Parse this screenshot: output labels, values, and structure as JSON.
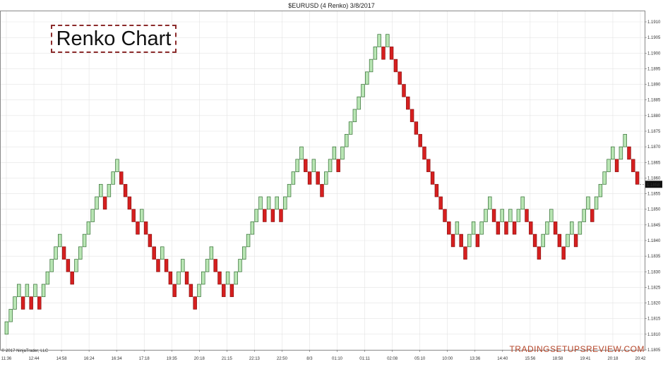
{
  "chart_data": {
    "type": "renko",
    "title": "$EURUSD (4 Renko)  3/8/2017",
    "box_size": 0.0004,
    "ylim": [
      1.1805,
      1.1912
    ],
    "y_ticks": [
      "1.1910",
      "1.1905",
      "1.1900",
      "1.1895",
      "1.1890",
      "1.1885",
      "1.1880",
      "1.1875",
      "1.1870",
      "1.1865",
      "1.1860",
      "1.1855",
      "1.1850",
      "1.1845",
      "1.1840",
      "1.1835",
      "1.1830",
      "1.1825",
      "1.1820",
      "1.1815",
      "1.1810",
      "1.1805"
    ],
    "x_ticks": [
      "11:36",
      "12:44",
      "14:58",
      "16:24",
      "16:34",
      "17:18",
      "19:35",
      "20:18",
      "21:15",
      "22:13",
      "22:50",
      "8/3",
      "01:10",
      "01:11",
      "02:08",
      "05:10",
      "10:00",
      "13:36",
      "14:40",
      "15:56",
      "18:58",
      "19:41",
      "20:18",
      "20:42"
    ],
    "last_price": "1.1858",
    "start_price": 1.181,
    "bricks": [
      {
        "dir": "up",
        "from": 1.181,
        "to": 1.1814
      },
      {
        "dir": "up",
        "from": 1.1814,
        "to": 1.1818
      },
      {
        "dir": "up",
        "from": 1.1818,
        "to": 1.1822
      },
      {
        "dir": "up",
        "from": 1.1822,
        "to": 1.1826
      },
      {
        "dir": "down",
        "from": 1.1822,
        "to": 1.1818
      },
      {
        "dir": "up",
        "from": 1.1822,
        "to": 1.1826
      },
      {
        "dir": "down",
        "from": 1.1822,
        "to": 1.1818
      },
      {
        "dir": "up",
        "from": 1.1822,
        "to": 1.1826
      },
      {
        "dir": "down",
        "from": 1.1822,
        "to": 1.1818
      },
      {
        "dir": "up",
        "from": 1.1822,
        "to": 1.1826
      },
      {
        "dir": "up",
        "from": 1.1826,
        "to": 1.183
      },
      {
        "dir": "up",
        "from": 1.183,
        "to": 1.1834
      },
      {
        "dir": "up",
        "from": 1.1834,
        "to": 1.1838
      },
      {
        "dir": "up",
        "from": 1.1838,
        "to": 1.1842
      },
      {
        "dir": "down",
        "from": 1.1838,
        "to": 1.1834
      },
      {
        "dir": "down",
        "from": 1.1834,
        "to": 1.183
      },
      {
        "dir": "down",
        "from": 1.183,
        "to": 1.1826
      },
      {
        "dir": "up",
        "from": 1.183,
        "to": 1.1834
      },
      {
        "dir": "up",
        "from": 1.1834,
        "to": 1.1838
      },
      {
        "dir": "up",
        "from": 1.1838,
        "to": 1.1842
      },
      {
        "dir": "up",
        "from": 1.1842,
        "to": 1.1846
      },
      {
        "dir": "up",
        "from": 1.1846,
        "to": 1.185
      },
      {
        "dir": "up",
        "from": 1.185,
        "to": 1.1854
      },
      {
        "dir": "up",
        "from": 1.1854,
        "to": 1.1858
      },
      {
        "dir": "down",
        "from": 1.1854,
        "to": 1.185
      },
      {
        "dir": "up",
        "from": 1.1854,
        "to": 1.1858
      },
      {
        "dir": "up",
        "from": 1.1858,
        "to": 1.1862
      },
      {
        "dir": "up",
        "from": 1.1862,
        "to": 1.1866
      },
      {
        "dir": "down",
        "from": 1.1862,
        "to": 1.1858
      },
      {
        "dir": "down",
        "from": 1.1858,
        "to": 1.1854
      },
      {
        "dir": "down",
        "from": 1.1854,
        "to": 1.185
      },
      {
        "dir": "down",
        "from": 1.185,
        "to": 1.1846
      },
      {
        "dir": "down",
        "from": 1.1846,
        "to": 1.1842
      },
      {
        "dir": "up",
        "from": 1.1846,
        "to": 1.185
      },
      {
        "dir": "down",
        "from": 1.1846,
        "to": 1.1842
      },
      {
        "dir": "down",
        "from": 1.1842,
        "to": 1.1838
      },
      {
        "dir": "down",
        "from": 1.1838,
        "to": 1.1834
      },
      {
        "dir": "down",
        "from": 1.1834,
        "to": 1.183
      },
      {
        "dir": "up",
        "from": 1.1834,
        "to": 1.1838
      },
      {
        "dir": "down",
        "from": 1.1834,
        "to": 1.183
      },
      {
        "dir": "down",
        "from": 1.183,
        "to": 1.1826
      },
      {
        "dir": "down",
        "from": 1.1826,
        "to": 1.1822
      },
      {
        "dir": "up",
        "from": 1.1826,
        "to": 1.183
      },
      {
        "dir": "up",
        "from": 1.183,
        "to": 1.1834
      },
      {
        "dir": "down",
        "from": 1.183,
        "to": 1.1826
      },
      {
        "dir": "down",
        "from": 1.1826,
        "to": 1.1822
      },
      {
        "dir": "down",
        "from": 1.1822,
        "to": 1.1818
      },
      {
        "dir": "up",
        "from": 1.1822,
        "to": 1.1826
      },
      {
        "dir": "up",
        "from": 1.1826,
        "to": 1.183
      },
      {
        "dir": "up",
        "from": 1.183,
        "to": 1.1834
      },
      {
        "dir": "up",
        "from": 1.1834,
        "to": 1.1838
      },
      {
        "dir": "down",
        "from": 1.1834,
        "to": 1.183
      },
      {
        "dir": "down",
        "from": 1.183,
        "to": 1.1826
      },
      {
        "dir": "down",
        "from": 1.1826,
        "to": 1.1822
      },
      {
        "dir": "up",
        "from": 1.1826,
        "to": 1.183
      },
      {
        "dir": "down",
        "from": 1.1826,
        "to": 1.1822
      },
      {
        "dir": "up",
        "from": 1.1826,
        "to": 1.183
      },
      {
        "dir": "up",
        "from": 1.183,
        "to": 1.1834
      },
      {
        "dir": "up",
        "from": 1.1834,
        "to": 1.1838
      },
      {
        "dir": "up",
        "from": 1.1838,
        "to": 1.1842
      },
      {
        "dir": "up",
        "from": 1.1842,
        "to": 1.1846
      },
      {
        "dir": "up",
        "from": 1.1846,
        "to": 1.185
      },
      {
        "dir": "up",
        "from": 1.185,
        "to": 1.1854
      },
      {
        "dir": "down",
        "from": 1.185,
        "to": 1.1846
      },
      {
        "dir": "up",
        "from": 1.185,
        "to": 1.1854
      },
      {
        "dir": "down",
        "from": 1.185,
        "to": 1.1846
      },
      {
        "dir": "up",
        "from": 1.185,
        "to": 1.1854
      },
      {
        "dir": "down",
        "from": 1.185,
        "to": 1.1846
      },
      {
        "dir": "up",
        "from": 1.185,
        "to": 1.1854
      },
      {
        "dir": "up",
        "from": 1.1854,
        "to": 1.1858
      },
      {
        "dir": "up",
        "from": 1.1858,
        "to": 1.1862
      },
      {
        "dir": "up",
        "from": 1.1862,
        "to": 1.1866
      },
      {
        "dir": "up",
        "from": 1.1866,
        "to": 1.187
      },
      {
        "dir": "down",
        "from": 1.1866,
        "to": 1.1862
      },
      {
        "dir": "down",
        "from": 1.1862,
        "to": 1.1858
      },
      {
        "dir": "up",
        "from": 1.1862,
        "to": 1.1866
      },
      {
        "dir": "down",
        "from": 1.1862,
        "to": 1.1858
      },
      {
        "dir": "down",
        "from": 1.1858,
        "to": 1.1854
      },
      {
        "dir": "up",
        "from": 1.1858,
        "to": 1.1862
      },
      {
        "dir": "up",
        "from": 1.1862,
        "to": 1.1866
      },
      {
        "dir": "up",
        "from": 1.1866,
        "to": 1.187
      },
      {
        "dir": "down",
        "from": 1.1866,
        "to": 1.1862
      },
      {
        "dir": "up",
        "from": 1.1866,
        "to": 1.187
      },
      {
        "dir": "up",
        "from": 1.187,
        "to": 1.1874
      },
      {
        "dir": "up",
        "from": 1.1874,
        "to": 1.1878
      },
      {
        "dir": "up",
        "from": 1.1878,
        "to": 1.1882
      },
      {
        "dir": "up",
        "from": 1.1882,
        "to": 1.1886
      },
      {
        "dir": "up",
        "from": 1.1886,
        "to": 1.189
      },
      {
        "dir": "up",
        "from": 1.189,
        "to": 1.1894
      },
      {
        "dir": "up",
        "from": 1.1894,
        "to": 1.1898
      },
      {
        "dir": "up",
        "from": 1.1898,
        "to": 1.1902
      },
      {
        "dir": "up",
        "from": 1.1902,
        "to": 1.1906
      },
      {
        "dir": "down",
        "from": 1.1902,
        "to": 1.1898
      },
      {
        "dir": "up",
        "from": 1.1902,
        "to": 1.1906
      },
      {
        "dir": "down",
        "from": 1.1902,
        "to": 1.1898
      },
      {
        "dir": "down",
        "from": 1.1898,
        "to": 1.1894
      },
      {
        "dir": "down",
        "from": 1.1894,
        "to": 1.189
      },
      {
        "dir": "down",
        "from": 1.189,
        "to": 1.1886
      },
      {
        "dir": "down",
        "from": 1.1886,
        "to": 1.1882
      },
      {
        "dir": "down",
        "from": 1.1882,
        "to": 1.1878
      },
      {
        "dir": "down",
        "from": 1.1878,
        "to": 1.1874
      },
      {
        "dir": "down",
        "from": 1.1874,
        "to": 1.187
      },
      {
        "dir": "down",
        "from": 1.187,
        "to": 1.1866
      },
      {
        "dir": "down",
        "from": 1.1866,
        "to": 1.1862
      },
      {
        "dir": "down",
        "from": 1.1862,
        "to": 1.1858
      },
      {
        "dir": "down",
        "from": 1.1858,
        "to": 1.1854
      },
      {
        "dir": "down",
        "from": 1.1854,
        "to": 1.185
      },
      {
        "dir": "down",
        "from": 1.185,
        "to": 1.1846
      },
      {
        "dir": "down",
        "from": 1.1846,
        "to": 1.1842
      },
      {
        "dir": "down",
        "from": 1.1842,
        "to": 1.1838
      },
      {
        "dir": "up",
        "from": 1.1842,
        "to": 1.1846
      },
      {
        "dir": "down",
        "from": 1.1842,
        "to": 1.1838
      },
      {
        "dir": "down",
        "from": 1.1838,
        "to": 1.1834
      },
      {
        "dir": "up",
        "from": 1.1838,
        "to": 1.1842
      },
      {
        "dir": "up",
        "from": 1.1842,
        "to": 1.1846
      },
      {
        "dir": "down",
        "from": 1.1842,
        "to": 1.1838
      },
      {
        "dir": "up",
        "from": 1.1842,
        "to": 1.1846
      },
      {
        "dir": "up",
        "from": 1.1846,
        "to": 1.185
      },
      {
        "dir": "up",
        "from": 1.185,
        "to": 1.1854
      },
      {
        "dir": "down",
        "from": 1.185,
        "to": 1.1846
      },
      {
        "dir": "down",
        "from": 1.1846,
        "to": 1.1842
      },
      {
        "dir": "up",
        "from": 1.1846,
        "to": 1.185
      },
      {
        "dir": "down",
        "from": 1.1846,
        "to": 1.1842
      },
      {
        "dir": "up",
        "from": 1.1846,
        "to": 1.185
      },
      {
        "dir": "down",
        "from": 1.1846,
        "to": 1.1842
      },
      {
        "dir": "up",
        "from": 1.1846,
        "to": 1.185
      },
      {
        "dir": "up",
        "from": 1.185,
        "to": 1.1854
      },
      {
        "dir": "down",
        "from": 1.185,
        "to": 1.1846
      },
      {
        "dir": "down",
        "from": 1.1846,
        "to": 1.1842
      },
      {
        "dir": "down",
        "from": 1.1842,
        "to": 1.1838
      },
      {
        "dir": "down",
        "from": 1.1838,
        "to": 1.1834
      },
      {
        "dir": "up",
        "from": 1.1838,
        "to": 1.1842
      },
      {
        "dir": "up",
        "from": 1.1842,
        "to": 1.1846
      },
      {
        "dir": "up",
        "from": 1.1846,
        "to": 1.185
      },
      {
        "dir": "down",
        "from": 1.1846,
        "to": 1.1842
      },
      {
        "dir": "down",
        "from": 1.1842,
        "to": 1.1838
      },
      {
        "dir": "down",
        "from": 1.1838,
        "to": 1.1834
      },
      {
        "dir": "up",
        "from": 1.1838,
        "to": 1.1842
      },
      {
        "dir": "up",
        "from": 1.1842,
        "to": 1.1846
      },
      {
        "dir": "down",
        "from": 1.1842,
        "to": 1.1838
      },
      {
        "dir": "up",
        "from": 1.1842,
        "to": 1.1846
      },
      {
        "dir": "up",
        "from": 1.1846,
        "to": 1.185
      },
      {
        "dir": "up",
        "from": 1.185,
        "to": 1.1854
      },
      {
        "dir": "down",
        "from": 1.185,
        "to": 1.1846
      },
      {
        "dir": "up",
        "from": 1.185,
        "to": 1.1854
      },
      {
        "dir": "up",
        "from": 1.1854,
        "to": 1.1858
      },
      {
        "dir": "up",
        "from": 1.1858,
        "to": 1.1862
      },
      {
        "dir": "up",
        "from": 1.1862,
        "to": 1.1866
      },
      {
        "dir": "up",
        "from": 1.1866,
        "to": 1.187
      },
      {
        "dir": "down",
        "from": 1.1866,
        "to": 1.1862
      },
      {
        "dir": "up",
        "from": 1.1866,
        "to": 1.187
      },
      {
        "dir": "up",
        "from": 1.187,
        "to": 1.1874
      },
      {
        "dir": "down",
        "from": 1.187,
        "to": 1.1866
      },
      {
        "dir": "down",
        "from": 1.1866,
        "to": 1.1862
      },
      {
        "dir": "down",
        "from": 1.1862,
        "to": 1.1858
      }
    ]
  },
  "annotation": {
    "text": "Renko Chart"
  },
  "footer": {
    "copyright": "© 2017 NinjaTrader, LLC",
    "watermark": "TRADINGSETUPSREVIEW.COM"
  },
  "colors": {
    "up_fill": "#b9e6b4",
    "up_stroke": "#2f6b2f",
    "down_fill": "#d61f1f",
    "down_stroke": "#8a0f0f",
    "grid": "#e3e3e3",
    "annotation_border": "#8b2a2a",
    "watermark": "#b5462a"
  }
}
